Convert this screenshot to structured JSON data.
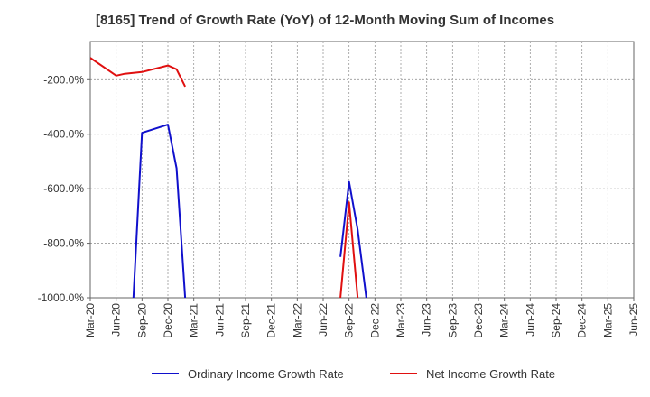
{
  "chart_data": {
    "type": "line",
    "title": "[8165]  Trend of Growth Rate (YoY) of 12-Month Moving Sum of Incomes",
    "xlabel": "",
    "ylabel": "",
    "ylim": [
      -1000,
      -60
    ],
    "yticks": [
      -200,
      -400,
      -600,
      -800,
      -1000
    ],
    "ytick_labels": [
      "-200.0%",
      "-400.0%",
      "-600.0%",
      "-800.0%",
      "-1000.0%"
    ],
    "xlim": [
      "2020-03",
      "2025-06"
    ],
    "xtick_labels": [
      "Mar-20",
      "Jun-20",
      "Sep-20",
      "Dec-20",
      "Mar-21",
      "Jun-21",
      "Sep-21",
      "Dec-21",
      "Mar-22",
      "Jun-22",
      "Sep-22",
      "Dec-22",
      "Mar-23",
      "Jun-23",
      "Sep-23",
      "Dec-23",
      "Mar-24",
      "Jun-24",
      "Sep-24",
      "Dec-24",
      "Mar-25",
      "Jun-25"
    ],
    "grid": "vertical dotted",
    "legend": "bottom",
    "series": [
      {
        "name": "Ordinary Income Growth Rate",
        "color": "#1010cc",
        "segments": [
          {
            "x": [
              "2020-08",
              "2020-09",
              "2020-12",
              "2021-01",
              "2021-02"
            ],
            "y": [
              -1000,
              -395,
              -365,
              -525,
              -1000
            ]
          },
          {
            "x": [
              "2022-08",
              "2022-09",
              "2022-10",
              "2022-11"
            ],
            "y": [
              -850,
              -575,
              -750,
              -1000
            ]
          }
        ]
      },
      {
        "name": "Net Income Growth Rate",
        "color": "#e01010",
        "segments": [
          {
            "x": [
              "2020-03",
              "2020-06",
              "2020-07",
              "2020-09",
              "2020-12",
              "2021-01",
              "2021-02"
            ],
            "y": [
              -120,
              -185,
              -178,
              -172,
              -148,
              -162,
              -225
            ]
          },
          {
            "x": [
              "2022-08",
              "2022-09",
              "2022-10"
            ],
            "y": [
              -1000,
              -650,
              -1000
            ]
          }
        ]
      }
    ]
  }
}
